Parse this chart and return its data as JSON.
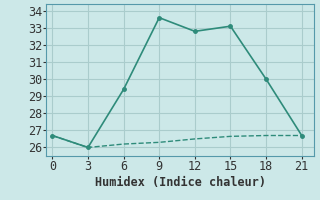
{
  "xlabel": "Humidex (Indice chaleur)",
  "bg_color": "#cce8e8",
  "grid_color": "#aacccc",
  "line_color": "#2e8b7a",
  "line1_x": [
    0,
    3,
    6,
    9,
    12,
    15,
    18,
    21
  ],
  "line1_y": [
    26.7,
    26.0,
    29.4,
    33.6,
    32.8,
    33.1,
    30.0,
    26.7
  ],
  "line2_x": [
    0,
    3,
    6,
    9,
    12,
    15,
    18,
    21
  ],
  "line2_y": [
    26.7,
    26.0,
    26.2,
    26.3,
    26.5,
    26.65,
    26.7,
    26.7
  ],
  "xlim": [
    -0.5,
    22
  ],
  "ylim": [
    25.5,
    34.4
  ],
  "xticks": [
    0,
    3,
    6,
    9,
    12,
    15,
    18,
    21
  ],
  "yticks": [
    26,
    27,
    28,
    29,
    30,
    31,
    32,
    33,
    34
  ],
  "tick_fontsize": 8.5,
  "xlabel_fontsize": 8.5
}
